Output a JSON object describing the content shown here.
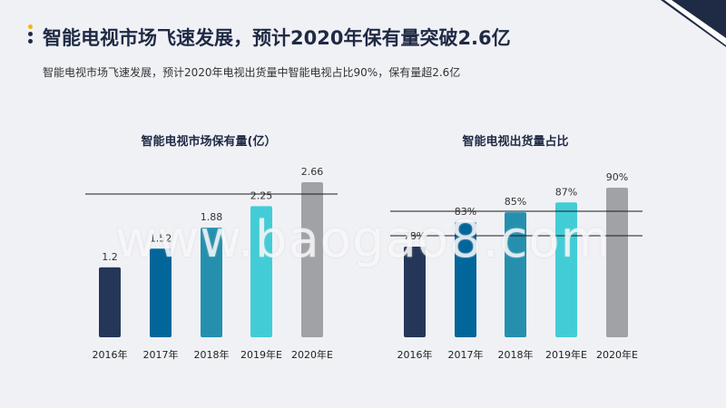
{
  "header": {
    "title": "智能电视市场飞速发展，预计2020年保有量突破2.6亿",
    "subtitle": "智能电视市场飞速发展，预计2020年电视出货量中智能电视占比90%，保有量超2.6亿"
  },
  "watermark": "www.baogao8.com",
  "colors": [
    "#253758",
    "#03669a",
    "#2590ae",
    "#42cdd6",
    "#a1a2a6"
  ],
  "chart_data": [
    {
      "type": "bar",
      "title": "智能电视市场保有量(亿）",
      "categories": [
        "2016年",
        "2017年",
        "2018年",
        "2019年E",
        "2020年E"
      ],
      "values": [
        1.2,
        1.52,
        1.88,
        2.25,
        2.66
      ],
      "labels": [
        "1.2",
        "1.52",
        "1.88",
        "2.25",
        "2.66"
      ],
      "ylim": [
        0,
        2.66
      ]
    },
    {
      "type": "bar",
      "title": "智能电视出货量占比",
      "categories": [
        "2016年",
        "2017年",
        "2018年",
        "2019年E",
        "2020年E"
      ],
      "values": [
        78,
        83,
        85,
        87,
        90
      ],
      "labels": [
        "78%",
        "83%",
        "85%",
        "87%",
        "90%"
      ],
      "ylim": [
        0,
        90
      ]
    }
  ]
}
